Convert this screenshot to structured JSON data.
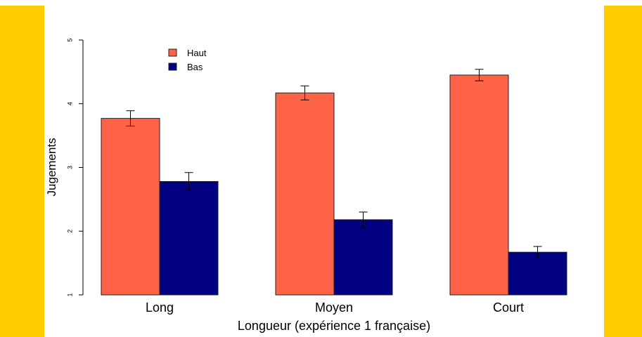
{
  "colors": {
    "accent_stripe": "#FFCC00",
    "haut": "#FF6347",
    "bas": "#000080"
  },
  "chart_data": {
    "type": "bar",
    "title": "",
    "xlabel": "Longueur (expérience 1 française)",
    "ylabel": "Jugements",
    "categories": [
      "Long",
      "Moyen",
      "Court"
    ],
    "ylim": [
      1,
      5
    ],
    "yticks": [
      "1",
      "2",
      "3",
      "4",
      "5"
    ],
    "grid": false,
    "legend_position": "top-left",
    "series": [
      {
        "name": "Haut",
        "color": "#FF6347",
        "values": [
          3.77,
          4.17,
          4.45
        ],
        "error": [
          0.12,
          0.11,
          0.09
        ]
      },
      {
        "name": "Bas",
        "color": "#000080",
        "values": [
          2.78,
          2.18,
          1.67
        ],
        "error": [
          0.14,
          0.12,
          0.09
        ]
      }
    ]
  }
}
